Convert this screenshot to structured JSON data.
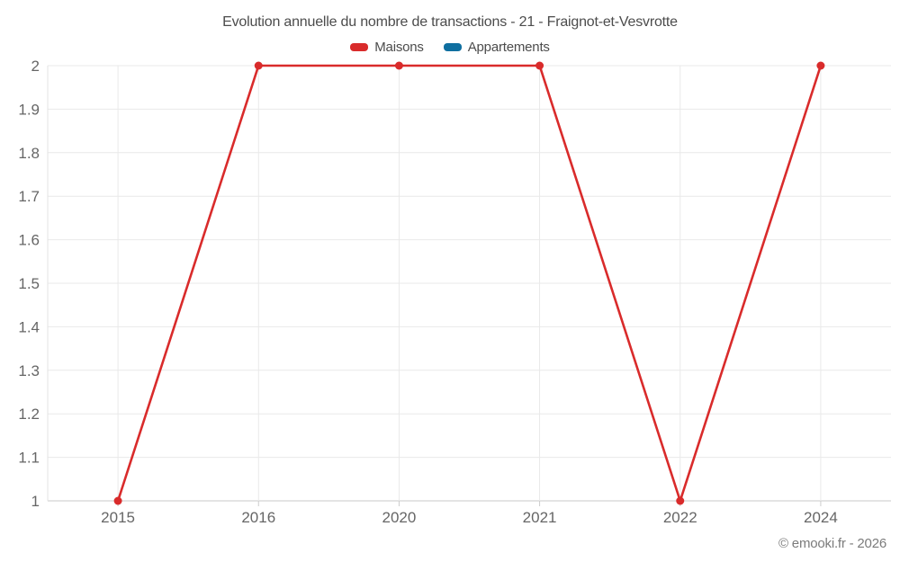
{
  "title": "Evolution annuelle du nombre de transactions - 21 - Fraignot-et-Vesvrotte",
  "legend": [
    {
      "label": "Maisons",
      "color": "#d92b2b"
    },
    {
      "label": "Appartements",
      "color": "#0f6fa0"
    }
  ],
  "copyright": "© emooki.fr - 2026",
  "colors": {
    "grid": "#e9e9e9",
    "axis_line": "#c9c9c9",
    "left_border": "#e3e3e3",
    "tick": "#cccccc",
    "tick_label": "#666666",
    "title_text": "#4c4c4c",
    "background": "#ffffff"
  },
  "chart_data": {
    "type": "line",
    "title": "Evolution annuelle du nombre de transactions - 21 - Fraignot-et-Vesvrotte",
    "categories": [
      "2015",
      "2016",
      "2020",
      "2021",
      "2022",
      "2024"
    ],
    "series": [
      {
        "name": "Maisons",
        "color": "#d92b2b",
        "values": [
          1,
          2,
          2,
          2,
          1,
          2
        ]
      },
      {
        "name": "Appartements",
        "color": "#0f6fa0",
        "values": []
      }
    ],
    "xlabel": "",
    "ylabel": "",
    "ylim": [
      1,
      2
    ],
    "ytick_step": 0.1,
    "ytick_labels": [
      "1",
      "1.1",
      "1.2",
      "1.3",
      "1.4",
      "1.5",
      "1.6",
      "1.7",
      "1.8",
      "1.9",
      "2"
    ],
    "grid": true,
    "legend_position": "top",
    "marker": "circle"
  }
}
